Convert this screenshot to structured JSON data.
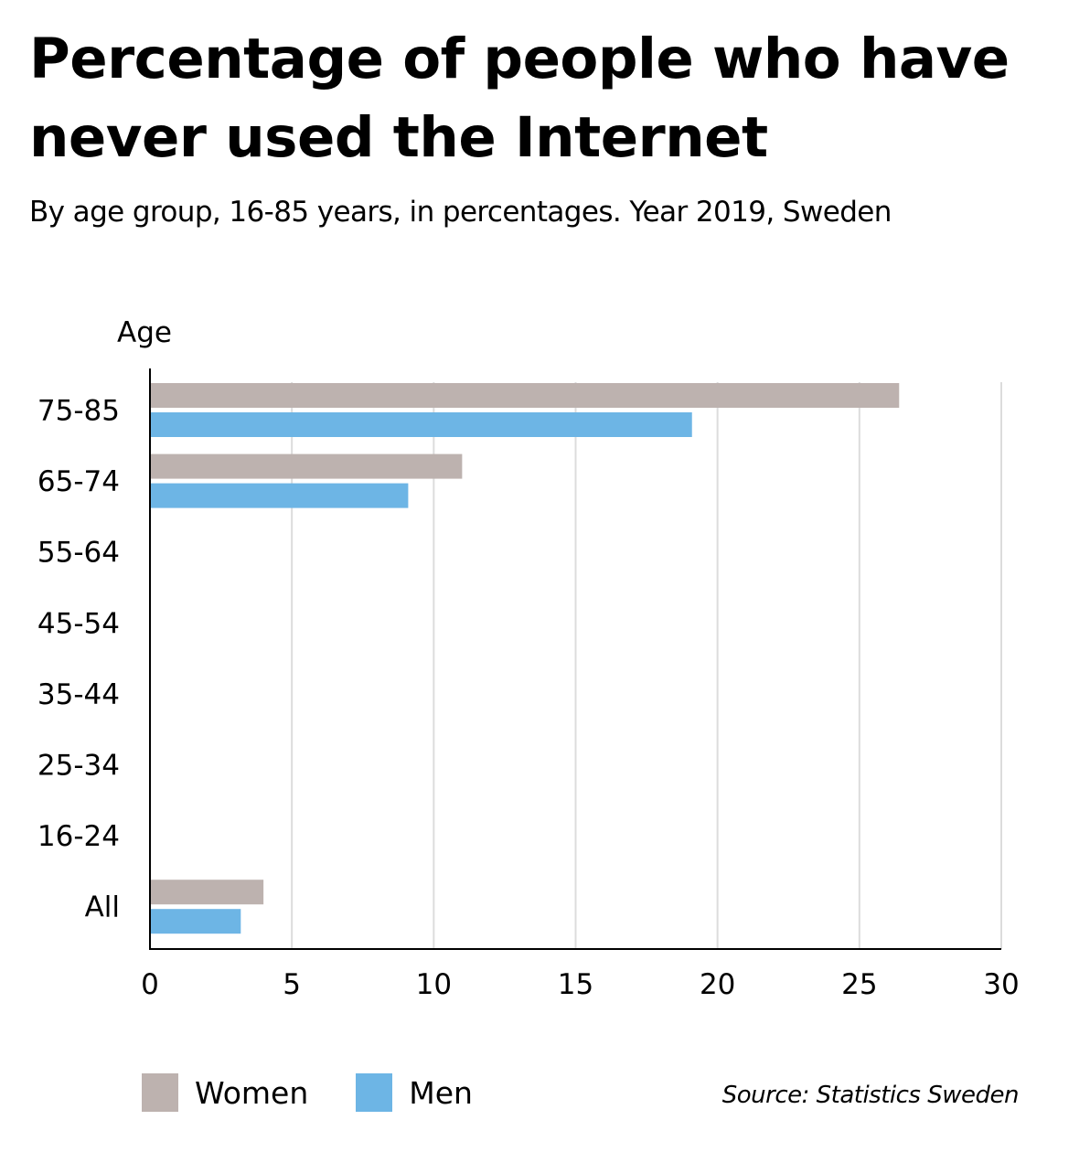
{
  "chart_data": {
    "type": "bar",
    "orientation": "horizontal",
    "title": "Percentage of people who have never used the Internet",
    "subtitle": "By age group, 16-85 years, in percentages. Year 2019, Sweden",
    "ylabel": "Age",
    "xlabel": "",
    "categories": [
      "75-85",
      "65-74",
      "55-64",
      "45-54",
      "35-44",
      "25-34",
      "16-24",
      "All"
    ],
    "series": [
      {
        "name": "Women",
        "color": "#bdb2af",
        "values": [
          26.4,
          11.0,
          null,
          null,
          null,
          null,
          null,
          4.0
        ]
      },
      {
        "name": "Men",
        "color": "#6db5e5",
        "values": [
          19.1,
          9.1,
          null,
          null,
          null,
          null,
          null,
          3.2
        ]
      }
    ],
    "xlim": [
      0,
      30
    ],
    "xticks": [
      0,
      5,
      10,
      15,
      20,
      25,
      30
    ],
    "grid": true,
    "legend": "bottom-left",
    "source": "Source: Statistics Sweden"
  }
}
